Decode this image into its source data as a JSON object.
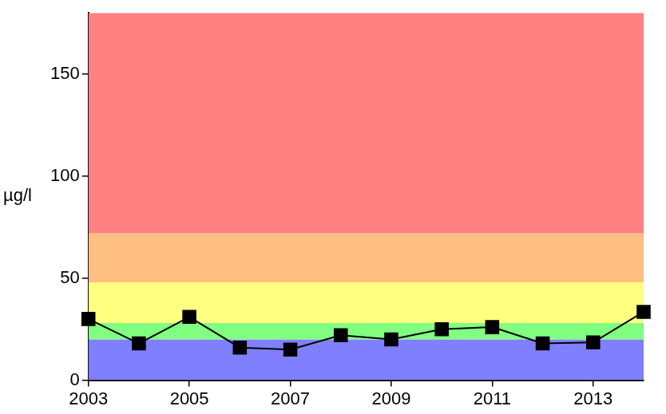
{
  "chart_data": {
    "type": "line",
    "y_label": "µg/l",
    "x": [
      2003,
      2004,
      2005,
      2006,
      2007,
      2008,
      2009,
      2010,
      2011,
      2012,
      2013,
      2014
    ],
    "values": [
      30,
      18,
      31,
      16,
      15,
      22,
      20,
      25,
      26,
      18,
      18.5,
      33.5
    ],
    "color": "#000000",
    "marker": "square",
    "line_style": "solid",
    "xlim": [
      2003,
      2014
    ],
    "xticks": [
      2003,
      2005,
      2007,
      2009,
      2011,
      2013
    ],
    "ylim": [
      0,
      180
    ],
    "yticks": [
      0,
      50,
      100,
      150
    ],
    "grid": false,
    "bands": [
      {
        "from": 0,
        "to": 20,
        "color": "#8080ff"
      },
      {
        "from": 20,
        "to": 28,
        "color": "#80ff80"
      },
      {
        "from": 28,
        "to": 48,
        "color": "#ffff80"
      },
      {
        "from": 48,
        "to": 72,
        "color": "#ffbf80"
      },
      {
        "from": 72,
        "to": 180,
        "color": "#ff8080"
      }
    ]
  }
}
